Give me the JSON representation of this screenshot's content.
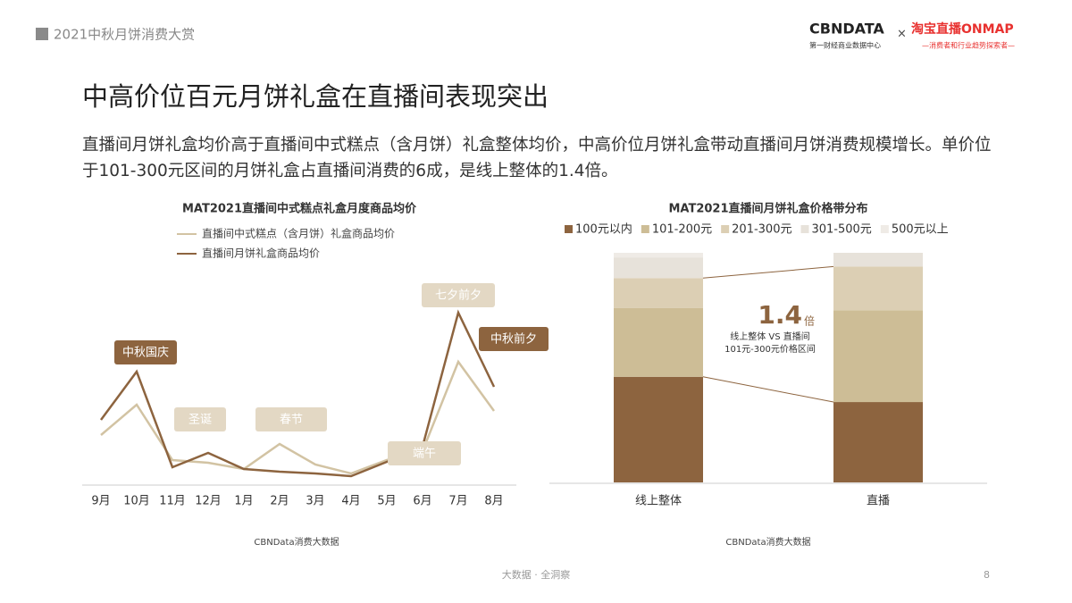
{
  "header": {
    "title": "2021中秋月饼消费大赏",
    "logo_left": "CBNDATA",
    "logo_left_sub": "第一财经商业数据中心",
    "logo_times": "×",
    "logo_right": "淘宝直播ONMAP",
    "logo_right_sub": "—消费者和行业趋势探索者—"
  },
  "title": "中高价位百元月饼礼盒在直播间表现突出",
  "body": "直播间月饼礼盒均价高于直播间中式糕点（含月饼）礼盒整体均价，中高价位月饼礼盒带动直播间月饼消费规模增长。单价位于101-300元区间的月饼礼盒占直播间消费的6成，是线上整体的1.4倍。",
  "chart_data": [
    {
      "type": "line",
      "title": "MAT2021直播间中式糕点礼盒月度商品均价",
      "categories": [
        "9月",
        "10月",
        "11月",
        "12月",
        "1月",
        "2月",
        "3月",
        "4月",
        "5月",
        "6月",
        "7月",
        "8月"
      ],
      "series": [
        {
          "name": "直播间中式糕点（含月饼）礼盒商品均价",
          "color": "#d2c3a3",
          "values": [
            73,
            107,
            45,
            42,
            35,
            63,
            40,
            30,
            45,
            55,
            155,
            100
          ]
        },
        {
          "name": "直播间月饼礼盒商品均价",
          "color": "#8d643f",
          "values": [
            90,
            144,
            37,
            53,
            35,
            32,
            30,
            27,
            43,
            60,
            210,
            127
          ]
        }
      ],
      "annotations": [
        "中秋国庆",
        "圣诞",
        "春节",
        "端午",
        "七夕前夕",
        "中秋前夕"
      ],
      "source": "CBNData消费大数据"
    },
    {
      "type": "bar",
      "stacked": true,
      "title": "MAT2021直播间月饼礼盒价格带分布",
      "categories": [
        "线上整体",
        "直播"
      ],
      "series": [
        {
          "name": "100元以内",
          "color": "#8d643f",
          "values": [
            46,
            35
          ]
        },
        {
          "name": "101-200元",
          "color": "#cdbd96",
          "values": [
            30,
            40
          ]
        },
        {
          "name": "201-300元",
          "color": "#dccfb4",
          "values": [
            13,
            19
          ]
        },
        {
          "name": "301-500元",
          "color": "#e7e2da",
          "values": [
            9,
            6
          ]
        },
        {
          "name": "500元以上",
          "color": "#efebe6",
          "values": [
            2,
            0
          ]
        }
      ],
      "callout": {
        "value": 1.4,
        "unit": "倍",
        "lines": [
          "线上整体 VS 直播间",
          "101元-300元价格区间"
        ]
      },
      "source": "CBNData消费大数据"
    }
  ],
  "footer": {
    "text": "大数据 · 全洞察",
    "page": "8"
  }
}
